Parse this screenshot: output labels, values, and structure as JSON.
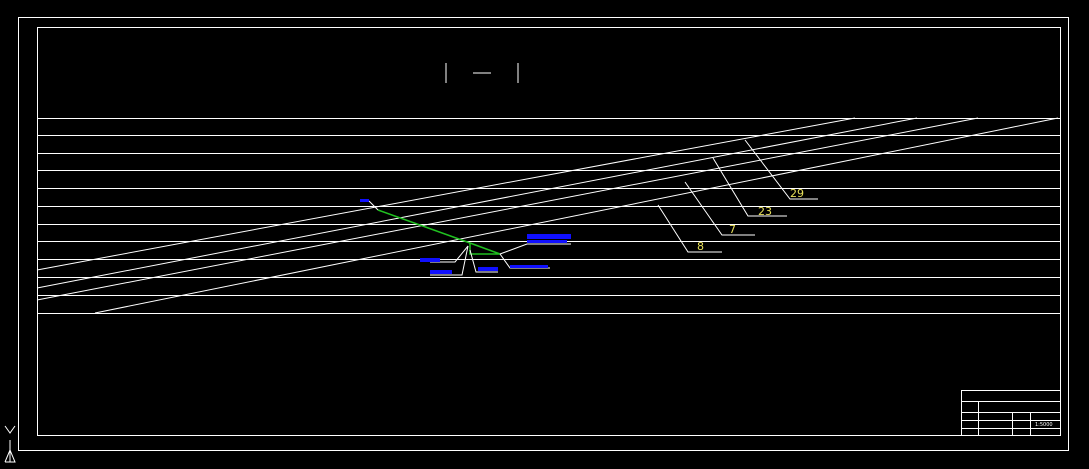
{
  "seams": [
    {
      "label": "29"
    },
    {
      "label": "23"
    },
    {
      "label": "7"
    },
    {
      "label": "8"
    }
  ],
  "title_block": {
    "scale": "1:5000"
  }
}
